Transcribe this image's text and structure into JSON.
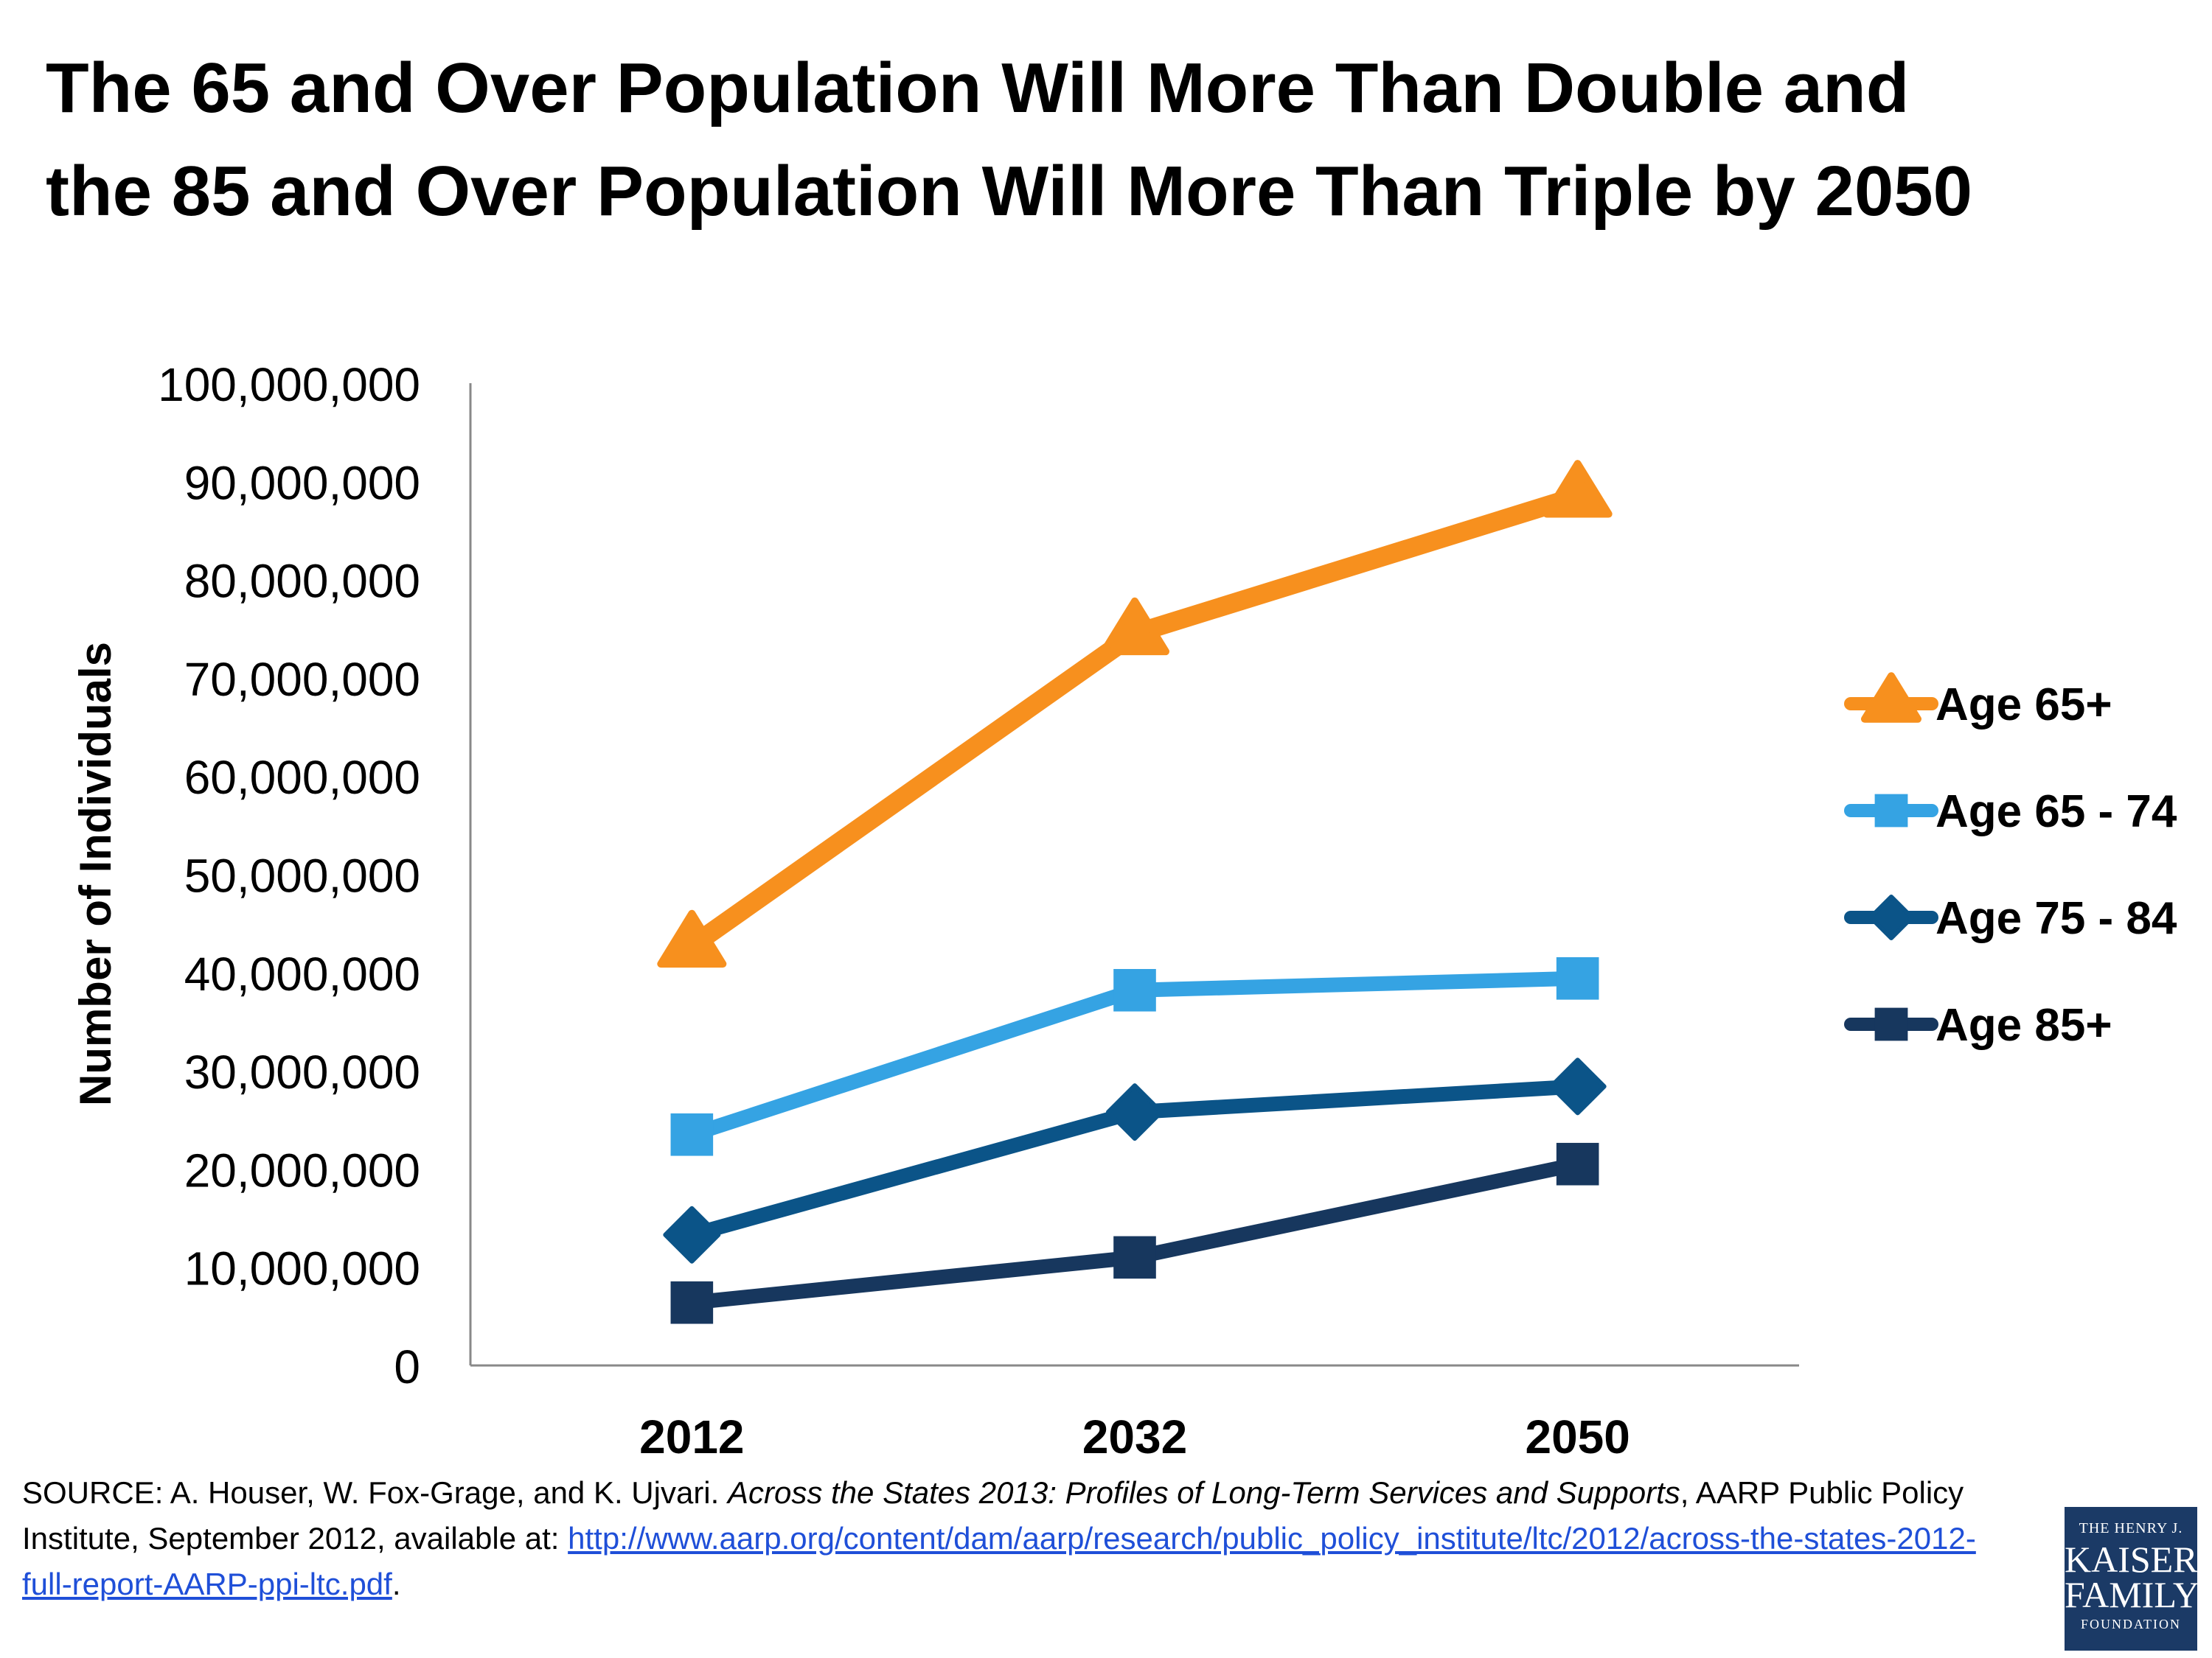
{
  "title_line1": "The 65 and Over Population Will More Than Double and",
  "title_line2": "the 85 and Over Population Will More Than Triple by 2050",
  "chart_data": {
    "type": "line",
    "title": "The 65 and Over Population Will More Than Double and the 85 and Over Population Will More Than Triple by 2050",
    "categories": [
      "2012",
      "2032",
      "2050"
    ],
    "ylabel": "Number of Individuals",
    "xlabel": "",
    "ylim": [
      0,
      100000000
    ],
    "yticks": [
      "0",
      "10,000,000",
      "20,000,000",
      "30,000,000",
      "40,000,000",
      "50,000,000",
      "60,000,000",
      "70,000,000",
      "80,000,000",
      "90,000,000",
      "100,000,000"
    ],
    "grid": false,
    "legend_position": "right",
    "series": [
      {
        "name": "Age 65+",
        "values": [
          42700000,
          74500000,
          88500000
        ],
        "color": "#f7901e",
        "marker": "triangle"
      },
      {
        "name": "Age 65 - 74",
        "values": [
          23500000,
          38200000,
          39400000
        ],
        "color": "#35a3e3",
        "marker": "square"
      },
      {
        "name": "Age 75 - 84",
        "values": [
          13300000,
          25800000,
          28400000
        ],
        "color": "#0b5488",
        "marker": "diamond"
      },
      {
        "name": "Age 85+",
        "values": [
          6400000,
          11000000,
          20500000
        ],
        "color": "#17375e",
        "marker": "square"
      }
    ]
  },
  "source": {
    "prefix": "SOURCE: A. Houser, W. Fox-Grage, and K. Ujvari. ",
    "italic": "Across the States 2013: Profiles of Long-Term Services and Supports",
    "middle": ", AARP Public Policy Institute, September 2012, available at: ",
    "link": "http://www.aarp.org/content/dam/aarp/research/public_policy_institute/ltc/2012/across-the-states-2012-full-report-AARP-ppi-ltc.pdf",
    "suffix": "."
  },
  "logo": {
    "line1": "THE HENRY J.",
    "line2": "KAISER",
    "line3": "FAMILY",
    "line4": "FOUNDATION"
  }
}
